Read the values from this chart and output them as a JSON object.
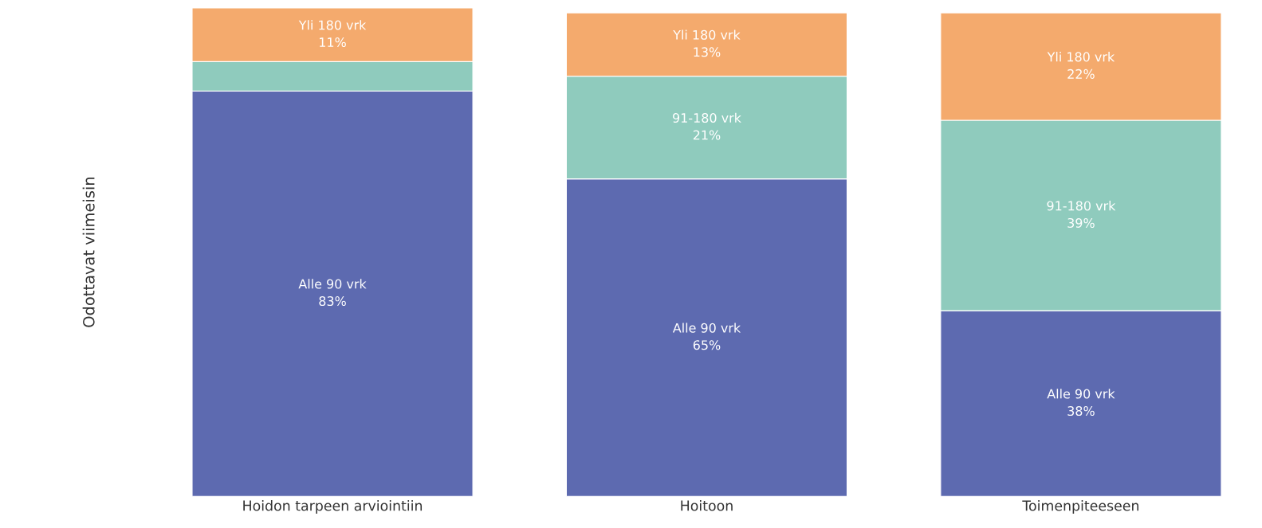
{
  "chart_data": {
    "type": "bar",
    "stacked": true,
    "ylabel": "Odottavat viimeisin",
    "categories": [
      "Hoidon tarpeen arviointiin",
      "Hoitoon",
      "Toimenpiteeseen"
    ],
    "ylim": [
      0,
      100
    ],
    "tick_labels": "x",
    "series": [
      {
        "name": "Alle 90 vrk",
        "color": "#5d6ab0",
        "values": [
          83,
          65,
          38
        ],
        "value_labels": [
          "83%",
          "65%",
          "38%"
        ]
      },
      {
        "name": "91-180 vrk",
        "color": "#8fcbbd",
        "values": [
          6,
          21,
          39
        ],
        "value_labels": [
          null,
          "21%",
          "39%"
        ]
      },
      {
        "name": "Yli 180 vrk",
        "color": "#f4aa6d",
        "values": [
          11,
          13,
          22
        ],
        "value_labels": [
          "11%",
          "13%",
          "22%"
        ]
      }
    ]
  }
}
